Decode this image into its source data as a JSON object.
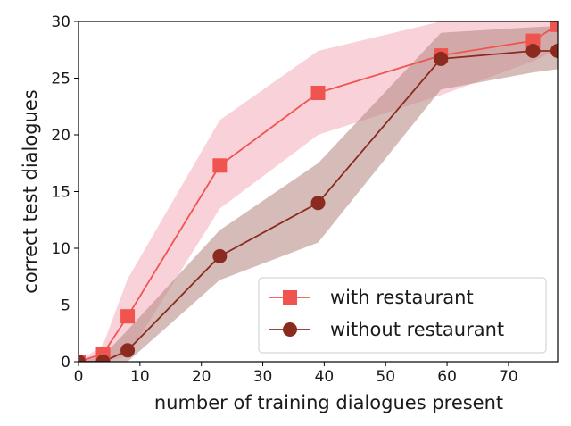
{
  "chart_data": {
    "type": "line",
    "xlabel": "number of training dialogues present",
    "ylabel": "correct test dialogues",
    "xlim": [
      0,
      78
    ],
    "ylim": [
      0,
      30
    ],
    "xticks": [
      "0",
      "10",
      "20",
      "30",
      "40",
      "50",
      "60",
      "70"
    ],
    "yticks": [
      "0",
      "5",
      "10",
      "15",
      "20",
      "25",
      "30"
    ],
    "grid": false,
    "legend_position": "lower-right",
    "series": [
      {
        "name": "with restaurant",
        "marker": "square",
        "color": "#f0544f",
        "band_color": "#f4a6b4",
        "x": [
          0,
          4,
          8,
          23,
          39,
          59,
          74,
          78
        ],
        "y": [
          0,
          0.7,
          4.0,
          17.3,
          23.7,
          27.0,
          28.3,
          29.7
        ],
        "y_lower": [
          0,
          0,
          0.5,
          13.5,
          20.0,
          23.5,
          26.5,
          27.5
        ],
        "y_upper": [
          0,
          1.5,
          7.3,
          21.3,
          27.4,
          30,
          30,
          30
        ]
      },
      {
        "name": "without restaurant",
        "marker": "circle",
        "color": "#8b2a1e",
        "band_color": "#b58580",
        "x": [
          0,
          4,
          8,
          23,
          39,
          59,
          74,
          78
        ],
        "y": [
          0,
          0,
          1.0,
          9.3,
          14.0,
          26.7,
          27.4,
          27.4
        ],
        "y_lower": [
          0,
          0,
          0,
          7.2,
          10.5,
          24.0,
          25.5,
          25.8
        ],
        "y_upper": [
          0,
          0.5,
          2.8,
          11.6,
          17.5,
          29.0,
          29.5,
          29.6
        ]
      }
    ]
  }
}
